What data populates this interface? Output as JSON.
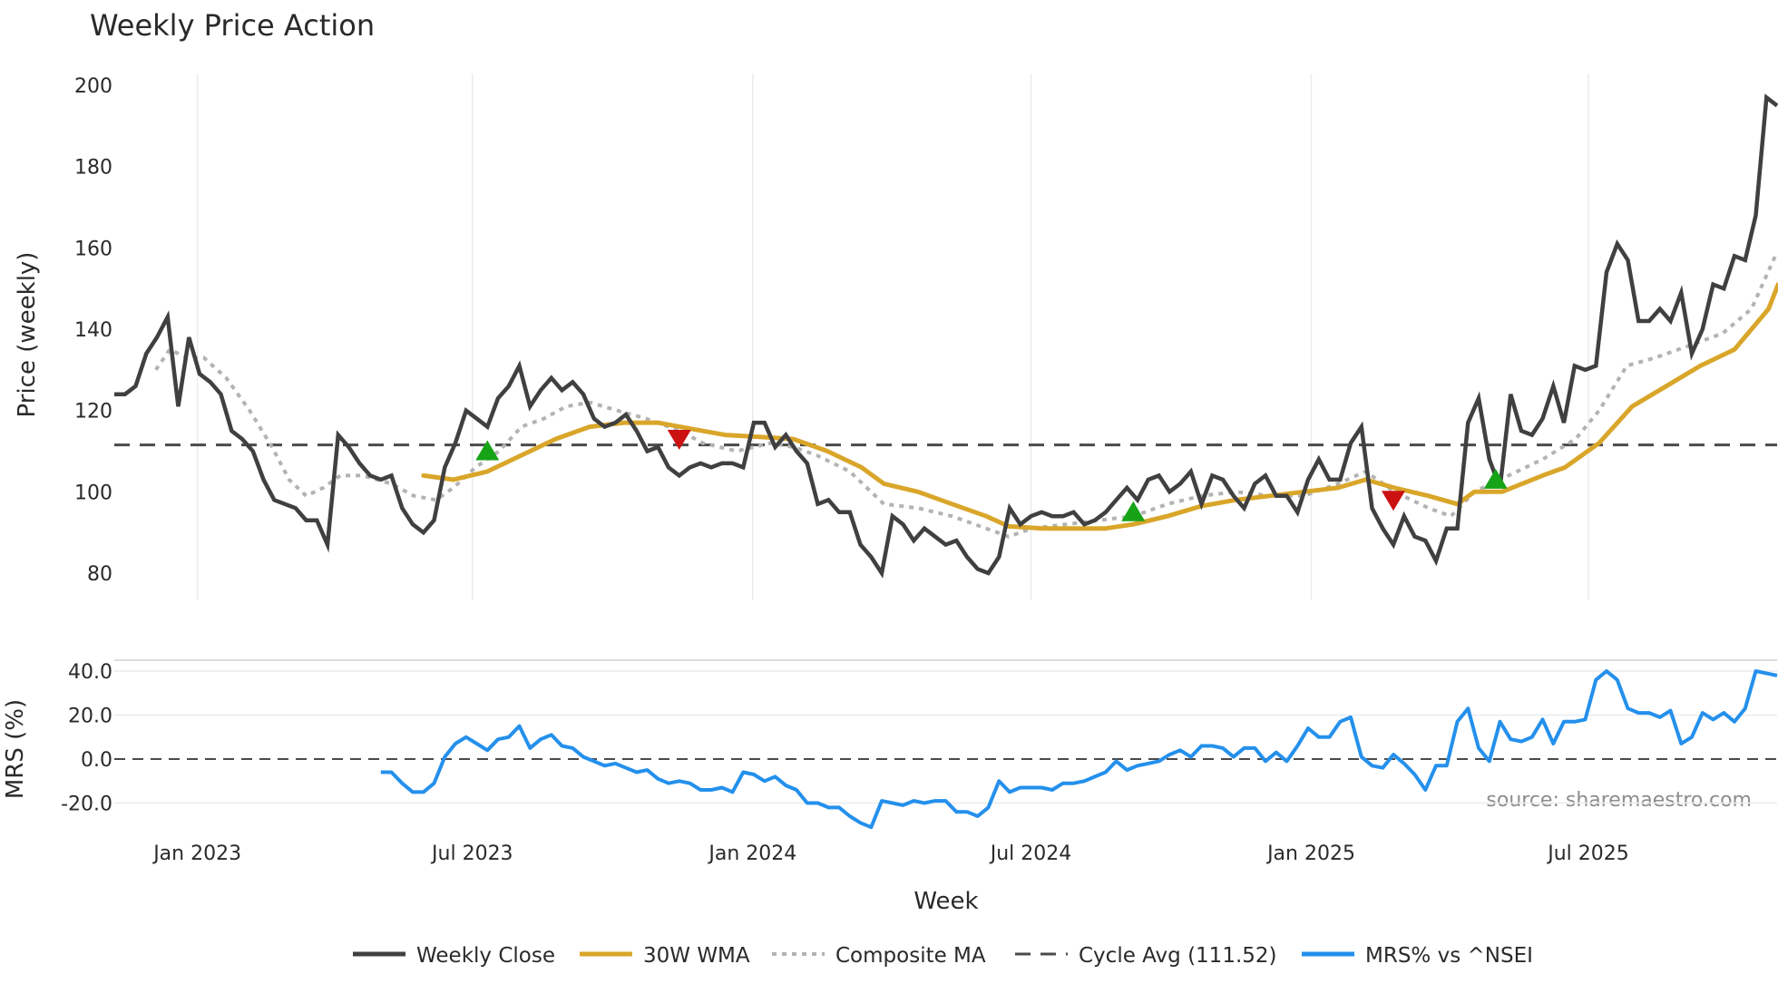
{
  "chart_data": {
    "type": "line",
    "title": "Weekly Price Action",
    "xlabel": "Week",
    "x_unit": "week index",
    "x_ticks": [
      {
        "week": 7.8,
        "label": "Jan 2023"
      },
      {
        "week": 33.6,
        "label": "Jul 2023"
      },
      {
        "week": 59.9,
        "label": "Jan 2024"
      },
      {
        "week": 86.0,
        "label": "Jul 2024"
      },
      {
        "week": 112.3,
        "label": "Jan 2025"
      },
      {
        "week": 138.3,
        "label": "Jul 2025"
      }
    ],
    "xlim": [
      0,
      156
    ],
    "price_panel": {
      "ylabel": "Price (weekly)",
      "ylim": [
        73,
        203
      ],
      "yticks": [
        80,
        100,
        120,
        140,
        160,
        180,
        200
      ],
      "cycle_avg": 111.52,
      "weekly_close": [
        124,
        124,
        126,
        134,
        138,
        143,
        121,
        138,
        129,
        127,
        124,
        115,
        113,
        110,
        103,
        98,
        97,
        96,
        93,
        93,
        87,
        114,
        111,
        107,
        104,
        103,
        104,
        96,
        92,
        90,
        93,
        106,
        112,
        120,
        118,
        116,
        123,
        126,
        131,
        121,
        125,
        128,
        125,
        127,
        124,
        118,
        116,
        117,
        119,
        115,
        110,
        111,
        106,
        104,
        106,
        107,
        106,
        107,
        107,
        106,
        117,
        117,
        111,
        114,
        110,
        107,
        97,
        98,
        95,
        95,
        87,
        84,
        80,
        94,
        92,
        88,
        91,
        89,
        87,
        88,
        84,
        81,
        80,
        84,
        96,
        92,
        94,
        95,
        94,
        94,
        95,
        92,
        93,
        95,
        98,
        101,
        98,
        103,
        104,
        100,
        102,
        105,
        97,
        104,
        103,
        99,
        96,
        102,
        104,
        99,
        99,
        95,
        103,
        108,
        103,
        103,
        112,
        116,
        96,
        91,
        87,
        94,
        89,
        88,
        83,
        91,
        91,
        117,
        123,
        108,
        101,
        124,
        115,
        114,
        118,
        126,
        117,
        131,
        130,
        131,
        154,
        161,
        157,
        142,
        142,
        145,
        142,
        149,
        134,
        140,
        151,
        150,
        158,
        157,
        168,
        197,
        195
      ],
      "wma_30w": [
        [
          29,
          104
        ],
        [
          31.8,
          103
        ],
        [
          35,
          105
        ],
        [
          38.2,
          109
        ],
        [
          41.4,
          113
        ],
        [
          44.6,
          116
        ],
        [
          47.8,
          117
        ],
        [
          51,
          117
        ],
        [
          54.1,
          115.5
        ],
        [
          57.3,
          114
        ],
        [
          60.5,
          113.5
        ],
        [
          63.7,
          113
        ],
        [
          66.9,
          110
        ],
        [
          70.1,
          106
        ],
        [
          72.2,
          102
        ],
        [
          75.4,
          100
        ],
        [
          78.6,
          97
        ],
        [
          81.8,
          94
        ],
        [
          83.9,
          91.5
        ],
        [
          87.1,
          91
        ],
        [
          90.3,
          91
        ],
        [
          93,
          91
        ],
        [
          95.6,
          92
        ],
        [
          98.8,
          94
        ],
        [
          102,
          96.5
        ],
        [
          105.2,
          98
        ],
        [
          108.4,
          99
        ],
        [
          111.6,
          100
        ],
        [
          114.8,
          101
        ],
        [
          117.4,
          103
        ],
        [
          120.1,
          101
        ],
        [
          123.3,
          99
        ],
        [
          126,
          97
        ],
        [
          127.6,
          100
        ],
        [
          130.2,
          100
        ],
        [
          134,
          104
        ],
        [
          136.1,
          106
        ],
        [
          139.3,
          112
        ],
        [
          142.4,
          121
        ],
        [
          145.6,
          126
        ],
        [
          148.8,
          131
        ],
        [
          152,
          135
        ],
        [
          155.2,
          145
        ],
        [
          156.1,
          151
        ]
      ],
      "composite_ma": [
        [
          3.9,
          130
        ],
        [
          5.2,
          135
        ],
        [
          6.8,
          133
        ],
        [
          8.4,
          133
        ],
        [
          10.5,
          128
        ],
        [
          12.7,
          120
        ],
        [
          14.8,
          111
        ],
        [
          16.4,
          103
        ],
        [
          18,
          99
        ],
        [
          19.6,
          101
        ],
        [
          21.2,
          104
        ],
        [
          23.3,
          104
        ],
        [
          26,
          102
        ],
        [
          28.1,
          99
        ],
        [
          30.2,
          98
        ],
        [
          31.8,
          101
        ],
        [
          33.9,
          106
        ],
        [
          36.1,
          110
        ],
        [
          38.2,
          116
        ],
        [
          40.3,
          118
        ],
        [
          42.4,
          121
        ],
        [
          44.6,
          122
        ],
        [
          47.2,
          120
        ],
        [
          49.9,
          118
        ],
        [
          53.1,
          115
        ],
        [
          55.2,
          112
        ],
        [
          58.4,
          110
        ],
        [
          61.6,
          112
        ],
        [
          63.7,
          111
        ],
        [
          65.9,
          109
        ],
        [
          69,
          105
        ],
        [
          72.2,
          97
        ],
        [
          75.4,
          96
        ],
        [
          78.6,
          94
        ],
        [
          81.8,
          91
        ],
        [
          83.9,
          89
        ],
        [
          86.1,
          91
        ],
        [
          89.3,
          92
        ],
        [
          92.4,
          93
        ],
        [
          95.6,
          94
        ],
        [
          98.8,
          97
        ],
        [
          102,
          99
        ],
        [
          105.2,
          100
        ],
        [
          108.4,
          99
        ],
        [
          111.6,
          99
        ],
        [
          114.8,
          102
        ],
        [
          117.4,
          105
        ],
        [
          120.1,
          100
        ],
        [
          123.3,
          96
        ],
        [
          125.4,
          94
        ],
        [
          127.6,
          100
        ],
        [
          130.8,
          104
        ],
        [
          134,
          108
        ],
        [
          137.1,
          113
        ],
        [
          139.3,
          120
        ],
        [
          141.9,
          131
        ],
        [
          144.6,
          133
        ],
        [
          147.8,
          136
        ],
        [
          150.9,
          139
        ],
        [
          153.6,
          145
        ],
        [
          156,
          159
        ]
      ],
      "buy_signals": [
        [
          35,
          110
        ],
        [
          95.6,
          95
        ],
        [
          129.6,
          103
        ]
      ],
      "sell_signals": [
        [
          53,
          113
        ],
        [
          120,
          98
        ]
      ]
    },
    "mrs_panel": {
      "ylabel": "MRS (%)",
      "ylim": [
        -26,
        46
      ],
      "yticks": [
        {
          "v": 40,
          "label": "40.0"
        },
        {
          "v": 20,
          "label": "20.0"
        },
        {
          "v": 0,
          "label": "0.0"
        },
        {
          "v": -20,
          "label": "-20.0"
        }
      ],
      "start_week": 25,
      "mrs_vs_nsei": [
        -6,
        -6,
        -11,
        -15,
        -15,
        -11,
        1,
        7,
        10,
        7,
        4,
        9,
        10,
        15,
        5,
        9,
        11,
        6,
        5,
        1,
        -1,
        -3,
        -2,
        -4,
        -6,
        -5,
        -9,
        -11,
        -10,
        -11,
        -14,
        -14,
        -13,
        -15,
        -6,
        -7,
        -10,
        -8,
        -12,
        -14,
        -20,
        -20,
        -22,
        -22,
        -26,
        -29,
        -31,
        -19,
        -20,
        -21,
        -19,
        -20,
        -19,
        -19,
        -24,
        -24,
        -26,
        -22,
        -10,
        -15,
        -13,
        -13,
        -13,
        -14,
        -11,
        -11,
        -10,
        -8,
        -6,
        -1,
        -5,
        -3,
        -2,
        -1,
        2,
        4,
        1,
        6,
        6,
        5,
        1,
        5,
        5,
        -1,
        3,
        -1,
        6,
        14,
        10,
        10,
        17,
        19,
        1,
        -3,
        -4,
        2,
        -2,
        -7,
        -14,
        -3,
        -3,
        17,
        23,
        5,
        -1,
        17,
        9,
        8,
        10,
        18,
        7,
        17,
        17,
        18,
        36,
        40,
        36,
        23,
        21,
        21,
        19,
        22,
        7,
        10,
        21,
        18,
        21,
        17,
        23,
        40,
        39,
        38
      ],
      "source": "source: sharemaestro.com"
    },
    "legend": {
      "placement": "bottom",
      "items": [
        {
          "label": "Weekly Close",
          "color": "#404040",
          "style": "solid"
        },
        {
          "label": "30W WMA",
          "color": "#d9a62a",
          "style": "solid"
        },
        {
          "label": "Composite MA",
          "color": "#b3b3b3",
          "style": "dotted"
        },
        {
          "label": "Cycle Avg (111.52)",
          "color": "#4a4a4a",
          "style": "dashed"
        },
        {
          "label": "MRS% vs ^NSEI",
          "color": "#2490ec",
          "style": "solid"
        }
      ]
    },
    "colors": {
      "buy": "#17a317",
      "sell": "#cc1111",
      "grid": "#e9ecef"
    }
  }
}
